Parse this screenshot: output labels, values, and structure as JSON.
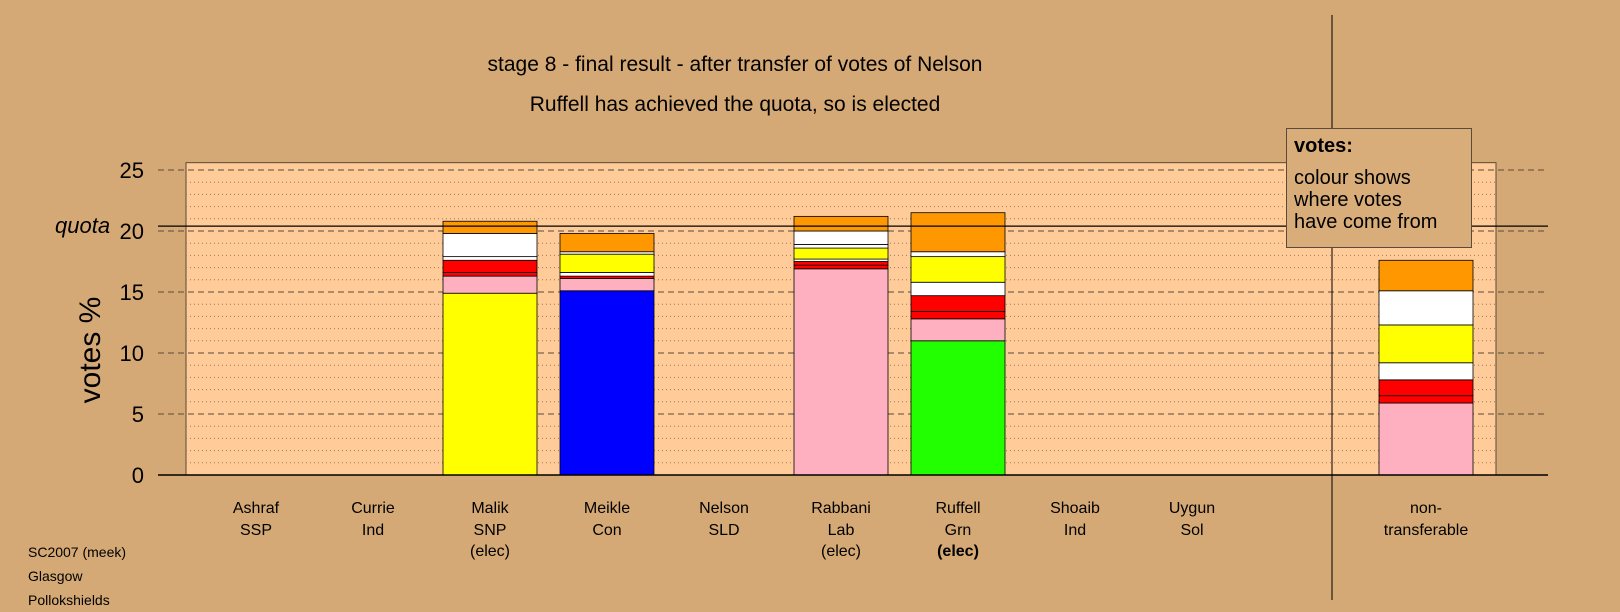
{
  "chart_data": {
    "type": "bar",
    "stacked": true,
    "title": "stage 8 - final result - after transfer of votes of Nelson",
    "subtitle": "Ruffell has achieved the quota, so is elected",
    "ylabel": "votes %",
    "ylim": [
      0,
      26
    ],
    "yticks": [
      "0",
      "5",
      "10",
      "15",
      "20",
      "25"
    ],
    "quota": 20.4,
    "quota_label": "quota",
    "grid": "dashed major, dotted minor",
    "categories": [
      {
        "line1": "Ashraf",
        "line2": "SSP",
        "line3": "",
        "elected": false
      },
      {
        "line1": "Currie",
        "line2": "Ind",
        "line3": "",
        "elected": false
      },
      {
        "line1": "Malik",
        "line2": "SNP",
        "line3": "(elec)",
        "elected": true
      },
      {
        "line1": "Meikle",
        "line2": "Con",
        "line3": "",
        "elected": false
      },
      {
        "line1": "Nelson",
        "line2": "SLD",
        "line3": "",
        "elected": false
      },
      {
        "line1": "Rabbani",
        "line2": "Lab",
        "line3": "(elec)",
        "elected": true
      },
      {
        "line1": "Ruffell",
        "line2": "Grn",
        "line3": "(elec)",
        "elected": true,
        "bold_status": true
      },
      {
        "line1": "Shoaib",
        "line2": "Ind",
        "line3": "",
        "elected": false
      },
      {
        "line1": "Uygun",
        "line2": "Sol",
        "line3": "",
        "elected": false
      },
      {
        "line1": "non-",
        "line2": "transferable",
        "line3": "",
        "elected": false
      }
    ],
    "series": [
      {
        "color": "#ffff00",
        "values": [
          0,
          0,
          14.9,
          0,
          0,
          0,
          0,
          0,
          0,
          0
        ]
      },
      {
        "color": "#0000ff",
        "values": [
          0,
          0,
          0,
          15.1,
          0,
          0,
          0,
          0,
          0,
          0
        ]
      },
      {
        "color": "#ffb0c0",
        "values": [
          0,
          0,
          1.4,
          1.0,
          0,
          16.9,
          0,
          0,
          0,
          5.9
        ]
      },
      {
        "color": "#22ff00",
        "values": [
          0,
          0,
          0,
          0,
          0,
          0,
          11.0,
          0,
          0,
          0
        ]
      },
      {
        "color": "#ffb0c0",
        "values": [
          0,
          0,
          0,
          0,
          0,
          0,
          1.8,
          0,
          0,
          0
        ]
      },
      {
        "color": "#ff0000",
        "values": [
          0,
          0,
          0.3,
          0,
          0,
          0.3,
          0.6,
          0,
          0,
          0.6
        ]
      },
      {
        "color": "#ff0000",
        "values": [
          0,
          0,
          1.0,
          0.2,
          0,
          0.3,
          1.3,
          0,
          0,
          1.3
        ]
      },
      {
        "color": "#ffffff",
        "values": [
          0,
          0,
          0.3,
          0.3,
          0,
          0.2,
          1.1,
          0,
          0,
          1.4
        ]
      },
      {
        "color": "#ffff00",
        "values": [
          0,
          0,
          0,
          1.5,
          0,
          0.9,
          2.1,
          0,
          0,
          3.1
        ]
      },
      {
        "color": "#ffffff",
        "values": [
          0,
          0,
          1.9,
          0.2,
          0,
          0.3,
          0,
          0,
          0,
          0
        ]
      },
      {
        "color": "#ffffff",
        "values": [
          0,
          0,
          0,
          0,
          0,
          1.1,
          0.4,
          0,
          0,
          2.8
        ]
      },
      {
        "color": "#ff9800",
        "values": [
          0,
          0,
          1.0,
          1.5,
          0,
          1.2,
          3.2,
          0,
          0,
          2.5
        ]
      }
    ]
  },
  "legend": {
    "title": "votes:",
    "line1": "colour shows",
    "line2": "where votes",
    "line3": "have come from"
  },
  "source": {
    "line1": "SC2007 (meek)",
    "line2": "Glasgow",
    "line3": "Pollokshields"
  }
}
